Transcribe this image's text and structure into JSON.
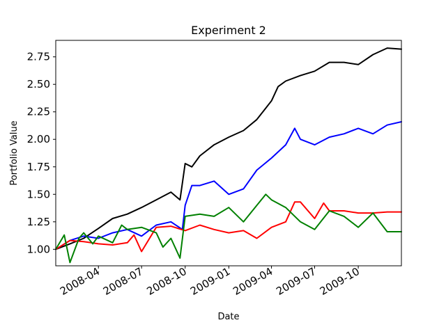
{
  "chart_data": {
    "type": "line",
    "title": "Experiment 2",
    "xlabel": "Date",
    "ylabel": "Portfolio Value",
    "x_type": "date",
    "xlim": [
      "2008-01-02",
      "2009-12-31"
    ],
    "ylim": [
      0.85,
      2.9
    ],
    "x_ticks": [
      "2008-04",
      "2008-07",
      "2008-10",
      "2009-01",
      "2009-04",
      "2009-07",
      "2009-10"
    ],
    "y_ticks": [
      "1.00",
      "1.25",
      "1.50",
      "1.75",
      "2.00",
      "2.25",
      "2.50",
      "2.75"
    ],
    "grid": false,
    "legend": "none",
    "series": [
      {
        "color": "#000000",
        "x": [
          "2008-01-02",
          "2008-02-01",
          "2008-03-01",
          "2008-04-01",
          "2008-05-01",
          "2008-06-01",
          "2008-07-01",
          "2008-08-01",
          "2008-09-01",
          "2008-09-20",
          "2008-10-01",
          "2008-10-15",
          "2008-11-01",
          "2008-12-01",
          "2009-01-01",
          "2009-02-01",
          "2009-03-01",
          "2009-04-01",
          "2009-04-15",
          "2009-05-01",
          "2009-06-01",
          "2009-07-01",
          "2009-08-01",
          "2009-09-01",
          "2009-10-01",
          "2009-11-01",
          "2009-12-01",
          "2009-12-31"
        ],
        "y": [
          1.0,
          1.05,
          1.1,
          1.19,
          1.28,
          1.32,
          1.38,
          1.45,
          1.52,
          1.45,
          1.78,
          1.75,
          1.85,
          1.95,
          2.02,
          2.08,
          2.18,
          2.35,
          2.48,
          2.53,
          2.58,
          2.62,
          2.7,
          2.7,
          2.68,
          2.77,
          2.83,
          2.82
        ]
      },
      {
        "color": "#0000ff",
        "x": [
          "2008-01-02",
          "2008-02-01",
          "2008-03-01",
          "2008-04-01",
          "2008-05-01",
          "2008-06-01",
          "2008-07-01",
          "2008-08-01",
          "2008-09-01",
          "2008-09-25",
          "2008-10-01",
          "2008-10-15",
          "2008-11-01",
          "2008-12-01",
          "2009-01-01",
          "2009-02-01",
          "2009-03-01",
          "2009-04-01",
          "2009-05-01",
          "2009-05-20",
          "2009-06-01",
          "2009-07-01",
          "2009-08-01",
          "2009-09-01",
          "2009-10-01",
          "2009-11-01",
          "2009-12-01",
          "2009-12-31"
        ],
        "y": [
          1.0,
          1.08,
          1.12,
          1.1,
          1.15,
          1.18,
          1.12,
          1.22,
          1.25,
          1.18,
          1.4,
          1.58,
          1.58,
          1.62,
          1.5,
          1.55,
          1.72,
          1.83,
          1.95,
          2.1,
          2.0,
          1.95,
          2.02,
          2.05,
          2.1,
          2.05,
          2.13,
          2.16
        ]
      },
      {
        "color": "#ff0000",
        "x": [
          "2008-01-02",
          "2008-02-01",
          "2008-03-01",
          "2008-04-01",
          "2008-05-01",
          "2008-06-01",
          "2008-06-15",
          "2008-07-01",
          "2008-08-01",
          "2008-09-01",
          "2008-10-01",
          "2008-11-01",
          "2008-12-01",
          "2009-01-01",
          "2009-02-01",
          "2009-03-01",
          "2009-04-01",
          "2009-05-01",
          "2009-05-20",
          "2009-06-01",
          "2009-07-01",
          "2009-07-20",
          "2009-08-01",
          "2009-09-01",
          "2009-10-01",
          "2009-11-01",
          "2009-12-01",
          "2009-12-31"
        ],
        "y": [
          1.0,
          1.08,
          1.07,
          1.05,
          1.04,
          1.06,
          1.13,
          0.98,
          1.2,
          1.21,
          1.17,
          1.22,
          1.18,
          1.15,
          1.17,
          1.1,
          1.2,
          1.25,
          1.43,
          1.43,
          1.28,
          1.42,
          1.35,
          1.35,
          1.33,
          1.33,
          1.34,
          1.34
        ]
      },
      {
        "color": "#008000",
        "x": [
          "2008-01-02",
          "2008-01-20",
          "2008-02-01",
          "2008-02-20",
          "2008-03-01",
          "2008-03-20",
          "2008-04-01",
          "2008-05-01",
          "2008-05-20",
          "2008-06-01",
          "2008-07-01",
          "2008-08-01",
          "2008-08-15",
          "2008-09-01",
          "2008-09-20",
          "2008-10-01",
          "2008-11-01",
          "2008-12-01",
          "2009-01-01",
          "2009-02-01",
          "2009-03-01",
          "2009-03-20",
          "2009-04-01",
          "2009-05-01",
          "2009-06-01",
          "2009-07-01",
          "2009-08-01",
          "2009-09-01",
          "2009-10-01",
          "2009-11-01",
          "2009-12-01",
          "2009-12-31"
        ],
        "y": [
          1.0,
          1.13,
          0.88,
          1.1,
          1.15,
          1.05,
          1.12,
          1.06,
          1.22,
          1.18,
          1.2,
          1.15,
          1.02,
          1.1,
          0.92,
          1.3,
          1.32,
          1.3,
          1.38,
          1.25,
          1.4,
          1.5,
          1.45,
          1.38,
          1.25,
          1.18,
          1.35,
          1.3,
          1.2,
          1.33,
          1.16,
          1.16
        ]
      }
    ]
  }
}
